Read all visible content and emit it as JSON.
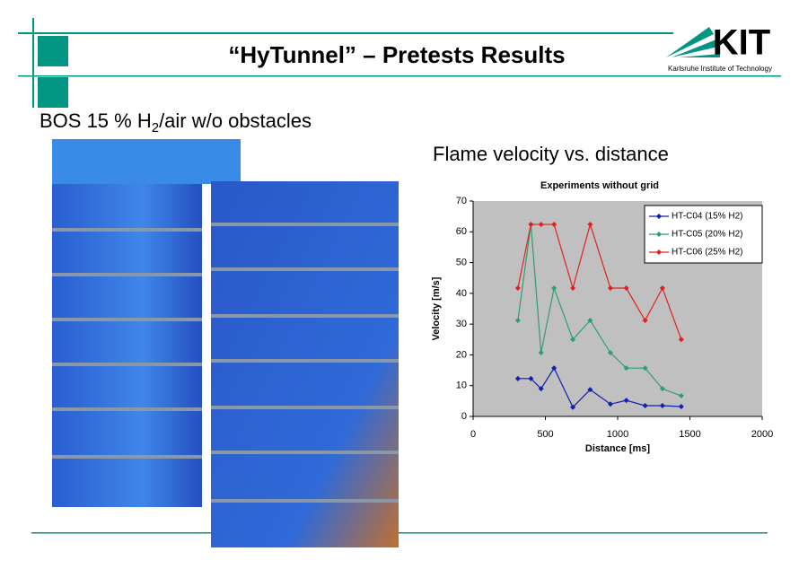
{
  "header": {
    "title": "“HyTunnel” – Pretests Results",
    "logo": "KIT",
    "logo_subtitle": "Karlsruhe Institute of Technology"
  },
  "subtitle": {
    "before": "BOS 15 % H",
    "subscript": "2",
    "after": "/air w/o obstacles"
  },
  "chart_heading": "Flame velocity vs. distance",
  "chart_data": {
    "type": "line",
    "title": "Experiments without grid",
    "x_label": "Distance [ms]",
    "y_label": "Velocity [m/s]",
    "x": [
      310,
      400,
      470,
      560,
      690,
      810,
      950,
      1060,
      1190,
      1310,
      1440
    ],
    "series": [
      {
        "name": "HT-C04 (15% H2)",
        "color": "#1020b0",
        "values": [
          12.3,
          12.3,
          9,
          15.7,
          3,
          8.7,
          4,
          5.2,
          3.5,
          3.5,
          3.2
        ]
      },
      {
        "name": "HT-C05 (20% H2)",
        "color": "#2e9e6e",
        "values": [
          31.2,
          62.4,
          20.7,
          41.7,
          25,
          31.2,
          20.7,
          15.7,
          15.7,
          9,
          6.7
        ]
      },
      {
        "name": "HT-C06 (25% H2)",
        "color": "#e02020",
        "values": [
          41.7,
          62.4,
          62.4,
          62.4,
          41.7,
          62.4,
          41.7,
          41.7,
          31.2,
          41.7,
          25
        ]
      }
    ],
    "xlim": [
      0,
      2000
    ],
    "xticks": [
      0,
      500,
      1000,
      1500,
      2000
    ],
    "ylim": [
      0,
      70
    ],
    "yticks": [
      0,
      10,
      20,
      30,
      40,
      50,
      60,
      70
    ],
    "legend": "top-right",
    "plot_background": "#c0c0c0"
  }
}
